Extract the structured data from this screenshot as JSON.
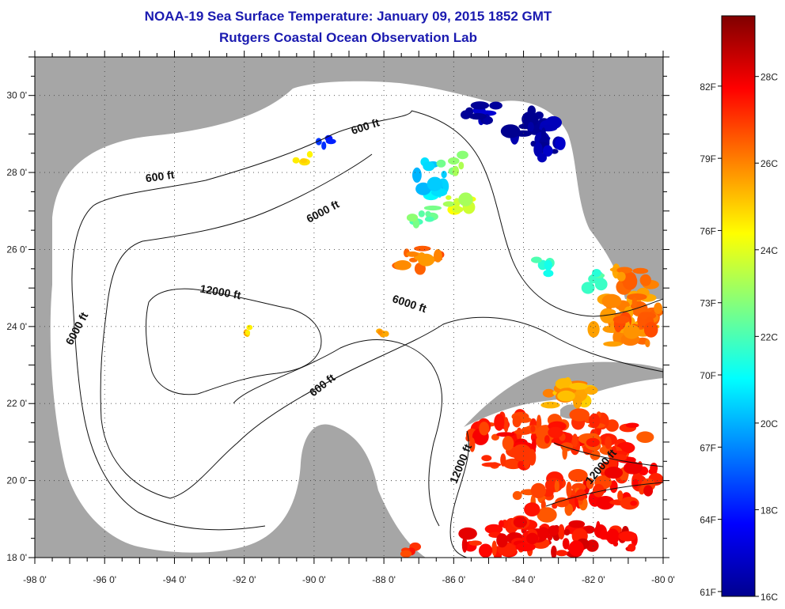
{
  "title": {
    "line1": "NOAA-19 Sea Surface Temperature:  January 09, 2015 1852 GMT",
    "line2": "Rutgers Coastal Ocean Observation Lab"
  },
  "map": {
    "lon_range": [
      -98,
      -80
    ],
    "lat_range": [
      18,
      31
    ],
    "lon_ticks": [
      {
        "value": -98,
        "label": "-98 0'"
      },
      {
        "value": -96,
        "label": "-96 0'"
      },
      {
        "value": -94,
        "label": "-94 0'"
      },
      {
        "value": -92,
        "label": "-92 0'"
      },
      {
        "value": -90,
        "label": "-90 0'"
      },
      {
        "value": -88,
        "label": "-88 0'"
      },
      {
        "value": -86,
        "label": "-86 0'"
      },
      {
        "value": -84,
        "label": "-84 0'"
      },
      {
        "value": -82,
        "label": "-82 0'"
      },
      {
        "value": -80,
        "label": "-80 0'"
      }
    ],
    "lat_ticks": [
      {
        "value": 18,
        "label": "18 0'"
      },
      {
        "value": 20,
        "label": "20 0'"
      },
      {
        "value": 22,
        "label": "22 0'"
      },
      {
        "value": 24,
        "label": "24 0'"
      },
      {
        "value": 26,
        "label": "26 0'"
      },
      {
        "value": 28,
        "label": "28 0'"
      },
      {
        "value": 30,
        "label": "30 0'"
      }
    ],
    "land_color": "#a6a6a6",
    "ocean_color": "#ffffff",
    "contour_labels": [
      {
        "text": "600 ft",
        "lon": -88.5,
        "lat": 29.1,
        "angle": -18
      },
      {
        "text": "600 ft",
        "lon": -94.4,
        "lat": 27.8,
        "angle": -8
      },
      {
        "text": "6000 ft",
        "lon": -89.7,
        "lat": 26.9,
        "angle": -28
      },
      {
        "text": "12000 ft",
        "lon": -92.7,
        "lat": 24.8,
        "angle": 10
      },
      {
        "text": "6000 ft",
        "lon": -87.3,
        "lat": 24.5,
        "angle": 18
      },
      {
        "text": "6000 ft",
        "lon": -96.7,
        "lat": 23.9,
        "angle": -62
      },
      {
        "text": "600 ft",
        "lon": -89.7,
        "lat": 22.4,
        "angle": -38
      },
      {
        "text": "12000 ft",
        "lon": -85.7,
        "lat": 20.4,
        "angle": -68
      },
      {
        "text": "12000 ft",
        "lon": -81.7,
        "lat": 20.3,
        "angle": -50
      }
    ]
  },
  "colorbar": {
    "min_c": 16,
    "max_c": 29.4,
    "colors": [
      "#00008f",
      "#0000ff",
      "#0080ff",
      "#00ffff",
      "#80ff80",
      "#ffff00",
      "#ff8000",
      "#ff0000",
      "#800000"
    ],
    "celsius_ticks": [
      {
        "value": 16,
        "label": "16C"
      },
      {
        "value": 18,
        "label": "18C"
      },
      {
        "value": 20,
        "label": "20C"
      },
      {
        "value": 22,
        "label": "22C"
      },
      {
        "value": 24,
        "label": "24C"
      },
      {
        "value": 26,
        "label": "26C"
      },
      {
        "value": 28,
        "label": "28C"
      }
    ],
    "fahrenheit_ticks": [
      {
        "value": 61,
        "label": "61F"
      },
      {
        "value": 64,
        "label": "64F"
      },
      {
        "value": 67,
        "label": "67F"
      },
      {
        "value": 70,
        "label": "70F"
      },
      {
        "value": 73,
        "label": "73F"
      },
      {
        "value": 76,
        "label": "76F"
      },
      {
        "value": 79,
        "label": "79F"
      },
      {
        "value": 82,
        "label": "82F"
      }
    ]
  },
  "sst_patches": [
    {
      "lon": -85.1,
      "lat": 29.6,
      "rlon": 0.6,
      "rlat": 0.3,
      "temp_c": 16.5
    },
    {
      "lon": -83.8,
      "lat": 29.2,
      "rlon": 0.7,
      "rlat": 0.5,
      "temp_c": 16.2
    },
    {
      "lon": -83.2,
      "lat": 28.6,
      "rlon": 0.4,
      "rlat": 0.4,
      "temp_c": 16.3
    },
    {
      "lon": -89.8,
      "lat": 28.8,
      "rlon": 0.35,
      "rlat": 0.15,
      "temp_c": 18.5
    },
    {
      "lon": -90.3,
      "lat": 28.4,
      "rlon": 0.3,
      "rlat": 0.15,
      "temp_c": 25.0
    },
    {
      "lon": -86.7,
      "lat": 27.8,
      "rlon": 0.5,
      "rlat": 0.5,
      "temp_c": 20.5
    },
    {
      "lon": -85.8,
      "lat": 27.2,
      "rlon": 0.5,
      "rlat": 0.35,
      "temp_c": 23.8
    },
    {
      "lon": -86.9,
      "lat": 26.9,
      "rlon": 0.6,
      "rlat": 0.25,
      "temp_c": 22.5
    },
    {
      "lon": -86.0,
      "lat": 28.3,
      "rlon": 0.4,
      "rlat": 0.3,
      "temp_c": 23.0
    },
    {
      "lon": -87.0,
      "lat": 25.8,
      "rlon": 0.7,
      "rlat": 0.35,
      "temp_c": 26.3
    },
    {
      "lon": -83.4,
      "lat": 25.6,
      "rlon": 0.3,
      "rlat": 0.3,
      "temp_c": 21.5
    },
    {
      "lon": -82.0,
      "lat": 25.1,
      "rlon": 0.4,
      "rlat": 0.3,
      "temp_c": 22.0
    },
    {
      "lon": -80.9,
      "lat": 24.7,
      "rlon": 0.9,
      "rlat": 0.9,
      "temp_c": 26.0
    },
    {
      "lon": -81.0,
      "lat": 23.9,
      "rlon": 1.0,
      "rlat": 0.5,
      "temp_c": 26.2
    },
    {
      "lon": -82.7,
      "lat": 22.2,
      "rlon": 0.8,
      "rlat": 0.4,
      "temp_c": 25.6
    },
    {
      "lon": -84.3,
      "lat": 21.0,
      "rlon": 1.3,
      "rlat": 0.7,
      "temp_c": 27.3
    },
    {
      "lon": -82.0,
      "lat": 21.2,
      "rlon": 1.5,
      "rlat": 0.6,
      "temp_c": 27.1
    },
    {
      "lon": -81.3,
      "lat": 20.0,
      "rlon": 1.2,
      "rlat": 0.7,
      "temp_c": 27.4
    },
    {
      "lon": -83.2,
      "lat": 19.6,
      "rlon": 1.0,
      "rlat": 0.5,
      "temp_c": 27.0
    },
    {
      "lon": -84.5,
      "lat": 18.5,
      "rlon": 1.3,
      "rlat": 0.45,
      "temp_c": 27.5
    },
    {
      "lon": -82.2,
      "lat": 18.5,
      "rlon": 1.6,
      "rlat": 0.45,
      "temp_c": 27.8
    },
    {
      "lon": -87.3,
      "lat": 18.2,
      "rlon": 0.3,
      "rlat": 0.15,
      "temp_c": 27.2
    },
    {
      "lon": -88.0,
      "lat": 23.9,
      "rlon": 0.15,
      "rlat": 0.1,
      "temp_c": 25.5
    },
    {
      "lon": -91.9,
      "lat": 23.9,
      "rlon": 0.08,
      "rlat": 0.1,
      "temp_c": 25.0
    }
  ]
}
